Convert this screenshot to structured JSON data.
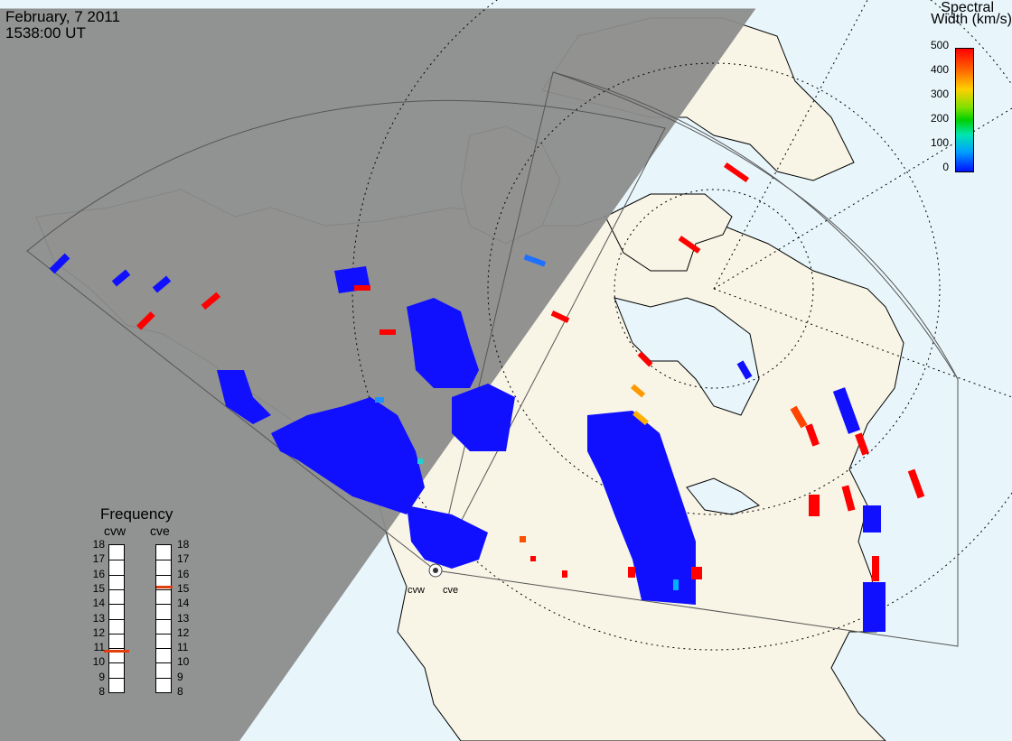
{
  "header": {
    "date": "February, 7 2011",
    "time": "1538:00 UT"
  },
  "colorbar": {
    "title_line1": "Spectral",
    "title_line2": "Width (km/s)",
    "ticks": [
      "500",
      "400",
      "300",
      "200",
      "100",
      "0"
    ]
  },
  "frequency_panel": {
    "title": "Frequency",
    "radars": [
      {
        "name": "cvw",
        "value_mhz": 10.8
      },
      {
        "name": "cve",
        "value_mhz": 15.2
      }
    ],
    "ticks": [
      "18",
      "17",
      "16",
      "15",
      "14",
      "13",
      "12",
      "11",
      "10",
      "9",
      "8"
    ]
  },
  "map": {
    "sites": [
      "cvw",
      "cve"
    ],
    "colors": {
      "land": "#f8f5e6",
      "ocean": "#e8f6fc",
      "night": "#8c8c8c",
      "high": "#ff0000",
      "low": "#1010ff"
    }
  }
}
